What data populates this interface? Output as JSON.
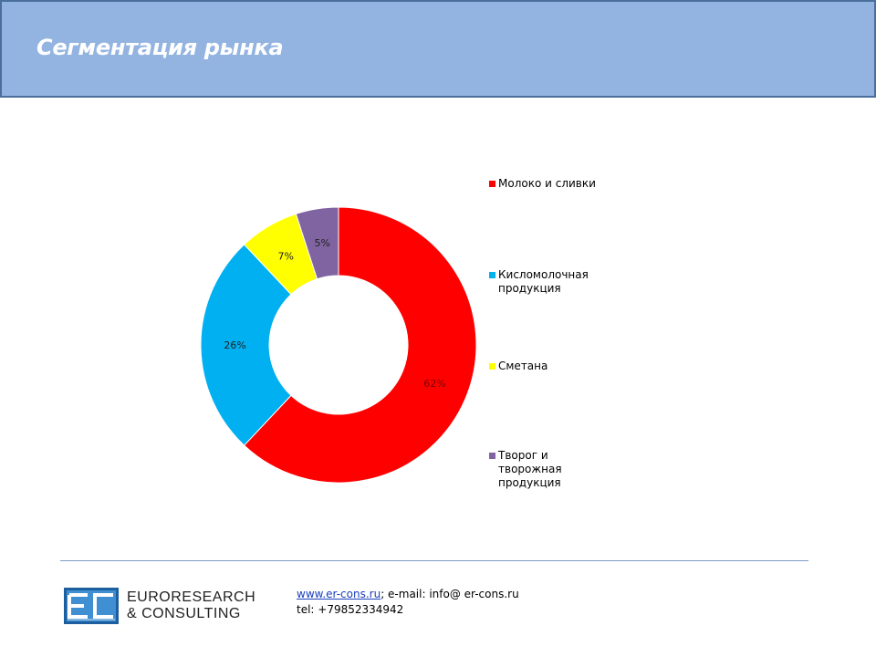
{
  "header": {
    "title": "Сегментация рынка"
  },
  "chart_data": {
    "type": "pie",
    "donut": true,
    "title": "",
    "categories": [
      "Молоко и сливки",
      "Кисломолочная продукция",
      "Сметана",
      "Творог и творожная продукция"
    ],
    "legend_lines": [
      [
        "Молоко и сливки"
      ],
      [
        "Кисломолочная",
        "продукция"
      ],
      [
        "Сметана"
      ],
      [
        "Творог и",
        "творожная",
        "продукция"
      ]
    ],
    "values": [
      62,
      26,
      7,
      5
    ],
    "labels": [
      "62%",
      "26%",
      "7%",
      "5%"
    ],
    "colors": [
      "#ff0000",
      "#00b0f0",
      "#ffff00",
      "#8064a2"
    ],
    "legend_position": "right"
  },
  "footer": {
    "brand_line1": "EURORESEARCH",
    "brand_line2": "& CONSULTING",
    "website": "www.er-cons.ru",
    "email_text": "; e-mail: info@ er-cons.ru",
    "tel": "tel: +79852334942"
  }
}
